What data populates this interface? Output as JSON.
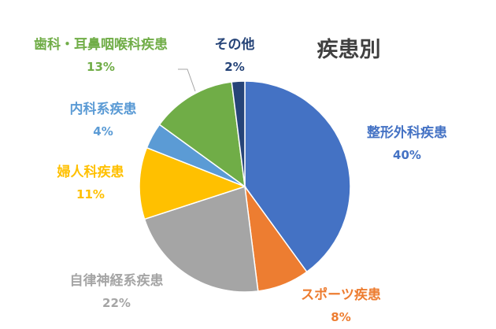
{
  "chart_data": {
    "type": "pie",
    "title": "疾患別",
    "slices": [
      {
        "label": "整形外科疾患",
        "value": 40,
        "display": "40%",
        "color": "#4472C4"
      },
      {
        "label": "スポーツ疾患",
        "value": 8,
        "display": "8%",
        "color": "#ED7D31"
      },
      {
        "label": "自律神経系疾患",
        "value": 22,
        "display": "22%",
        "color": "#A5A5A5"
      },
      {
        "label": "婦人科疾患",
        "value": 11,
        "display": "11%",
        "color": "#FFC000"
      },
      {
        "label": "内科系疾患",
        "value": 4,
        "display": "4%",
        "color": "#5B9BD5"
      },
      {
        "label": "歯科・耳鼻咽喉科疾患",
        "value": 13,
        "display": "13%",
        "color": "#70AD47"
      },
      {
        "label": "その他",
        "value": 2,
        "display": "2%",
        "color": "#264478"
      }
    ],
    "start_angle": "12 o'clock",
    "direction": "clockwise",
    "labels_outside": true
  }
}
